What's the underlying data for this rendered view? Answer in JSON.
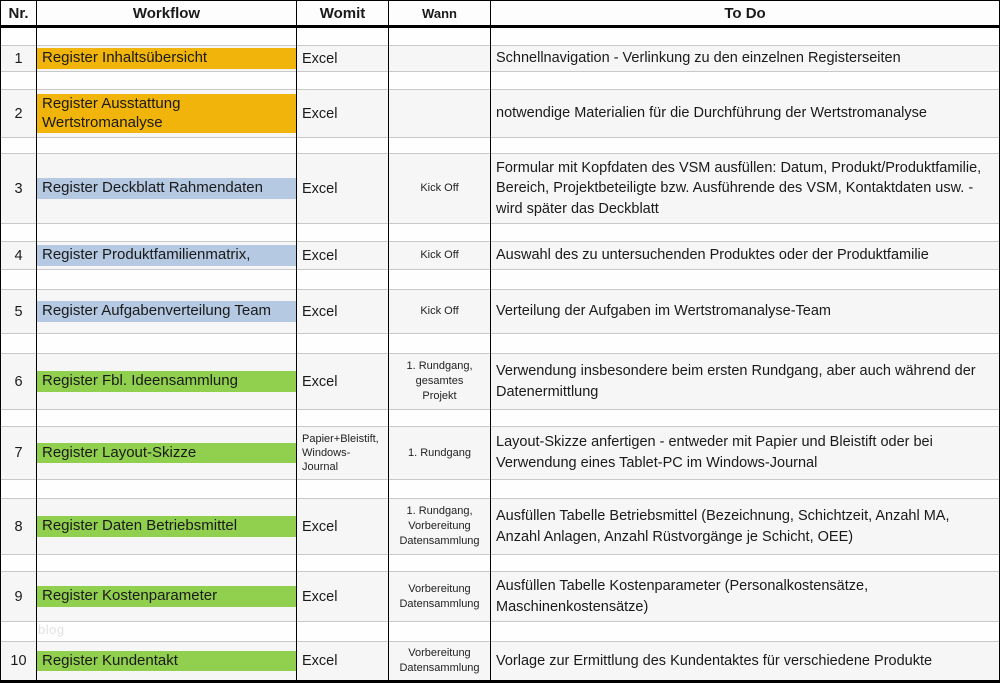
{
  "header": {
    "nr": "Nr.",
    "workflow": "Workflow",
    "womit": "Womit",
    "wann": "Wann",
    "todo": "To Do"
  },
  "colors": {
    "orange": "#F0B40B",
    "blue": "#B5C9E2",
    "green": "#90D04E"
  },
  "watermark": "blog",
  "rows": [
    {
      "nr": "1",
      "workflow": "Register Inhaltsübersicht",
      "color": "orange",
      "womit": "Excel",
      "wann": "",
      "todo": "Schnellnavigation - Verlinkung zu den einzelnen Registerseiten"
    },
    {
      "nr": "2",
      "workflow": "Register Ausstattung Wertstromanalyse",
      "color": "orange",
      "womit": "Excel",
      "wann": "",
      "todo": "notwendige Materialien für die Durchführung der Wertstromanalyse"
    },
    {
      "nr": "3",
      "workflow": "Register Deckblatt Rahmendaten",
      "color": "blue",
      "womit": "Excel",
      "wann": "Kick Off",
      "todo": "Formular mit Kopfdaten des VSM ausfüllen: Datum, Produkt/Produktfamilie, Bereich, Projektbeteiligte bzw. Ausführende des VSM, Kontaktdaten usw. - wird später das Deckblatt"
    },
    {
      "nr": "4",
      "workflow": "Register Produktfamilienmatrix,",
      "color": "blue",
      "womit": "Excel",
      "wann": "Kick Off",
      "todo": "Auswahl des zu untersuchenden Produktes oder der Produktfamilie"
    },
    {
      "nr": "5",
      "workflow": "Register Aufgabenverteilung Team",
      "color": "blue",
      "womit": "Excel",
      "wann": "Kick Off",
      "todo": "Verteilung der Aufgaben im Wertstromanalyse-Team"
    },
    {
      "nr": "6",
      "workflow": "Register Fbl. Ideensammlung",
      "color": "green",
      "womit": "Excel",
      "wann": "1. Rundgang, gesamtes Projekt",
      "todo": "Verwendung insbesondere beim ersten Rundgang, aber auch während der Datenermittlung"
    },
    {
      "nr": "7",
      "workflow": "Register Layout-Skizze",
      "color": "green",
      "womit": "Papier+Bleistift, Windows-Journal",
      "wann": "1. Rundgang",
      "todo": "Layout-Skizze anfertigen - entweder mit Papier und Bleistift oder bei Verwendung eines Tablet-PC im Windows-Journal"
    },
    {
      "nr": "8",
      "workflow": "Register Daten Betriebsmittel",
      "color": "green",
      "womit": "Excel",
      "wann": "1. Rundgang, Vorbereitung Datensammlung",
      "todo": "Ausfüllen Tabelle Betriebsmittel (Bezeichnung, Schichtzeit, Anzahl MA, Anzahl Anlagen, Anzahl Rüstvorgänge je Schicht, OEE)"
    },
    {
      "nr": "9",
      "workflow": "Register Kostenparameter",
      "color": "green",
      "womit": "Excel",
      "wann": "Vorbereitung Datensammlung",
      "todo": "Ausfüllen Tabelle Kostenparameter (Personalkostensätze, Maschinenkostensätze)"
    },
    {
      "nr": "10",
      "workflow": "Register Kundentakt",
      "color": "green",
      "womit": "Excel",
      "wann": "Vorbereitung Datensammlung",
      "todo": "Vorlage zur Ermittlung des Kundentaktes für verschiedene Produkte"
    }
  ]
}
